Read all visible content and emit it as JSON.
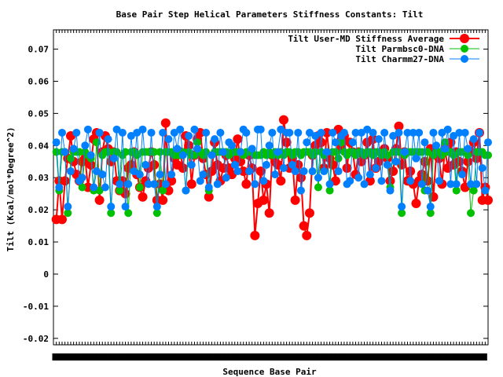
{
  "chart_data": {
    "type": "line",
    "title": "Base Pair Step Helical Parameters Stiffness Constants: Tilt",
    "xlabel": "Sequence Base Pair",
    "ylabel": "Tilt (Kcal/mol*Degree^2)",
    "ylim": [
      -0.022,
      0.076
    ],
    "yticks": [
      -0.02,
      -0.01,
      0,
      0.01,
      0.02,
      0.03,
      0.04,
      0.05,
      0.06,
      0.07
    ],
    "ytick_labels": [
      "-0.02",
      "-0.01",
      "0",
      "0.01",
      "0.02",
      "0.03",
      "0.04",
      "0.05",
      "0.06",
      "0.07"
    ],
    "xlim": [
      0,
      151
    ],
    "x_tick_count": 151,
    "grid": false,
    "legend_position": "top-right",
    "series": [
      {
        "name": "Tilt User-MD Stiffness Average",
        "color": "#ff0000",
        "values": [
          0.017,
          0.029,
          0.017,
          0.029,
          0.036,
          0.043,
          0.035,
          0.031,
          0.029,
          0.035,
          0.036,
          0.027,
          0.034,
          0.042,
          0.044,
          0.023,
          0.038,
          0.043,
          0.039,
          0.035,
          0.038,
          0.029,
          0.026,
          0.029,
          0.025,
          0.033,
          0.034,
          0.038,
          0.031,
          0.027,
          0.024,
          0.029,
          0.033,
          0.038,
          0.034,
          0.023,
          0.028,
          0.023,
          0.047,
          0.026,
          0.029,
          0.036,
          0.034,
          0.038,
          0.033,
          0.043,
          0.04,
          0.028,
          0.037,
          0.042,
          0.044,
          0.036,
          0.031,
          0.024,
          0.032,
          0.041,
          0.034,
          0.029,
          0.033,
          0.037,
          0.033,
          0.031,
          0.036,
          0.042,
          0.035,
          0.032,
          0.028,
          0.037,
          0.033,
          0.012,
          0.022,
          0.032,
          0.023,
          0.028,
          0.019,
          0.037,
          0.035,
          0.034,
          0.029,
          0.048,
          0.041,
          0.033,
          0.036,
          0.023,
          0.034,
          0.03,
          0.015,
          0.012,
          0.019,
          0.037,
          0.04,
          0.043,
          0.041,
          0.033,
          0.044,
          0.036,
          0.034,
          0.029,
          0.045,
          0.039,
          0.043,
          0.033,
          0.041,
          0.038,
          0.031,
          0.038,
          0.035,
          0.037,
          0.041,
          0.029,
          0.042,
          0.033,
          0.035,
          0.038,
          0.039,
          0.036,
          0.029,
          0.032,
          0.039,
          0.046,
          0.034,
          0.038,
          0.029,
          0.032,
          0.028,
          0.022,
          0.029,
          0.031,
          0.035,
          0.029,
          0.039,
          0.024,
          0.037,
          0.036,
          0.028,
          0.039,
          0.033,
          0.041,
          0.034,
          0.038,
          0.035,
          0.032,
          0.027,
          0.035,
          0.038,
          0.041,
          0.036,
          0.044,
          0.023,
          0.027,
          0.023
        ]
      },
      {
        "name": "Tilt Parmbsc0-DNA",
        "color": "#00c000",
        "values": [
          0.038,
          0.026,
          0.038,
          0.038,
          0.019,
          0.036,
          0.038,
          0.038,
          0.038,
          0.027,
          0.038,
          0.037,
          0.036,
          0.026,
          0.041,
          0.026,
          0.037,
          0.038,
          0.038,
          0.019,
          0.038,
          0.038,
          0.026,
          0.037,
          0.038,
          0.019,
          0.038,
          0.038,
          0.037,
          0.027,
          0.038,
          0.038,
          0.038,
          0.038,
          0.038,
          0.019,
          0.038,
          0.026,
          0.038,
          0.038,
          0.038,
          0.037,
          0.037,
          0.037,
          0.038,
          0.026,
          0.038,
          0.037,
          0.037,
          0.041,
          0.038,
          0.037,
          0.038,
          0.026,
          0.037,
          0.038,
          0.038,
          0.038,
          0.038,
          0.038,
          0.037,
          0.038,
          0.038,
          0.038,
          0.038,
          0.037,
          0.038,
          0.038,
          0.038,
          0.037,
          0.037,
          0.037,
          0.038,
          0.037,
          0.038,
          0.037,
          0.038,
          0.037,
          0.038,
          0.037,
          0.038,
          0.038,
          0.037,
          0.038,
          0.038,
          0.037,
          0.038,
          0.038,
          0.038,
          0.037,
          0.038,
          0.027,
          0.038,
          0.037,
          0.038,
          0.026,
          0.038,
          0.038,
          0.036,
          0.041,
          0.038,
          0.037,
          0.038,
          0.038,
          0.037,
          0.038,
          0.038,
          0.037,
          0.038,
          0.038,
          0.037,
          0.038,
          0.038,
          0.037,
          0.038,
          0.037,
          0.027,
          0.038,
          0.038,
          0.038,
          0.019,
          0.037,
          0.038,
          0.038,
          0.038,
          0.038,
          0.038,
          0.038,
          0.026,
          0.038,
          0.019,
          0.037,
          0.038,
          0.038,
          0.037,
          0.041,
          0.038,
          0.038,
          0.037,
          0.026,
          0.038,
          0.038,
          0.038,
          0.037,
          0.019,
          0.026,
          0.038,
          0.038,
          0.038,
          0.037,
          0.037
        ]
      },
      {
        "name": "Tilt Charmm27-DNA",
        "color": "#0080ff",
        "values": [
          0.041,
          0.027,
          0.044,
          0.038,
          0.021,
          0.032,
          0.039,
          0.044,
          0.029,
          0.03,
          0.04,
          0.045,
          0.037,
          0.027,
          0.032,
          0.044,
          0.031,
          0.027,
          0.042,
          0.021,
          0.036,
          0.045,
          0.028,
          0.044,
          0.021,
          0.028,
          0.043,
          0.032,
          0.044,
          0.031,
          0.045,
          0.034,
          0.028,
          0.044,
          0.028,
          0.021,
          0.031,
          0.044,
          0.028,
          0.042,
          0.031,
          0.044,
          0.039,
          0.045,
          0.037,
          0.026,
          0.043,
          0.034,
          0.045,
          0.039,
          0.029,
          0.031,
          0.044,
          0.027,
          0.037,
          0.042,
          0.028,
          0.044,
          0.038,
          0.03,
          0.041,
          0.04,
          0.034,
          0.032,
          0.038,
          0.045,
          0.044,
          0.032,
          0.039,
          0.028,
          0.045,
          0.045,
          0.029,
          0.034,
          0.04,
          0.044,
          0.031,
          0.038,
          0.045,
          0.033,
          0.044,
          0.044,
          0.034,
          0.032,
          0.044,
          0.026,
          0.032,
          0.041,
          0.044,
          0.032,
          0.043,
          0.03,
          0.044,
          0.032,
          0.038,
          0.028,
          0.044,
          0.041,
          0.032,
          0.043,
          0.044,
          0.028,
          0.029,
          0.041,
          0.044,
          0.03,
          0.044,
          0.028,
          0.045,
          0.031,
          0.044,
          0.033,
          0.042,
          0.029,
          0.044,
          0.034,
          0.026,
          0.043,
          0.035,
          0.044,
          0.021,
          0.038,
          0.044,
          0.029,
          0.044,
          0.036,
          0.044,
          0.028,
          0.041,
          0.026,
          0.021,
          0.044,
          0.04,
          0.029,
          0.044,
          0.039,
          0.045,
          0.028,
          0.043,
          0.028,
          0.044,
          0.031,
          0.044,
          0.039,
          0.028,
          0.042,
          0.028,
          0.044,
          0.033,
          0.026,
          0.041
        ]
      }
    ]
  }
}
